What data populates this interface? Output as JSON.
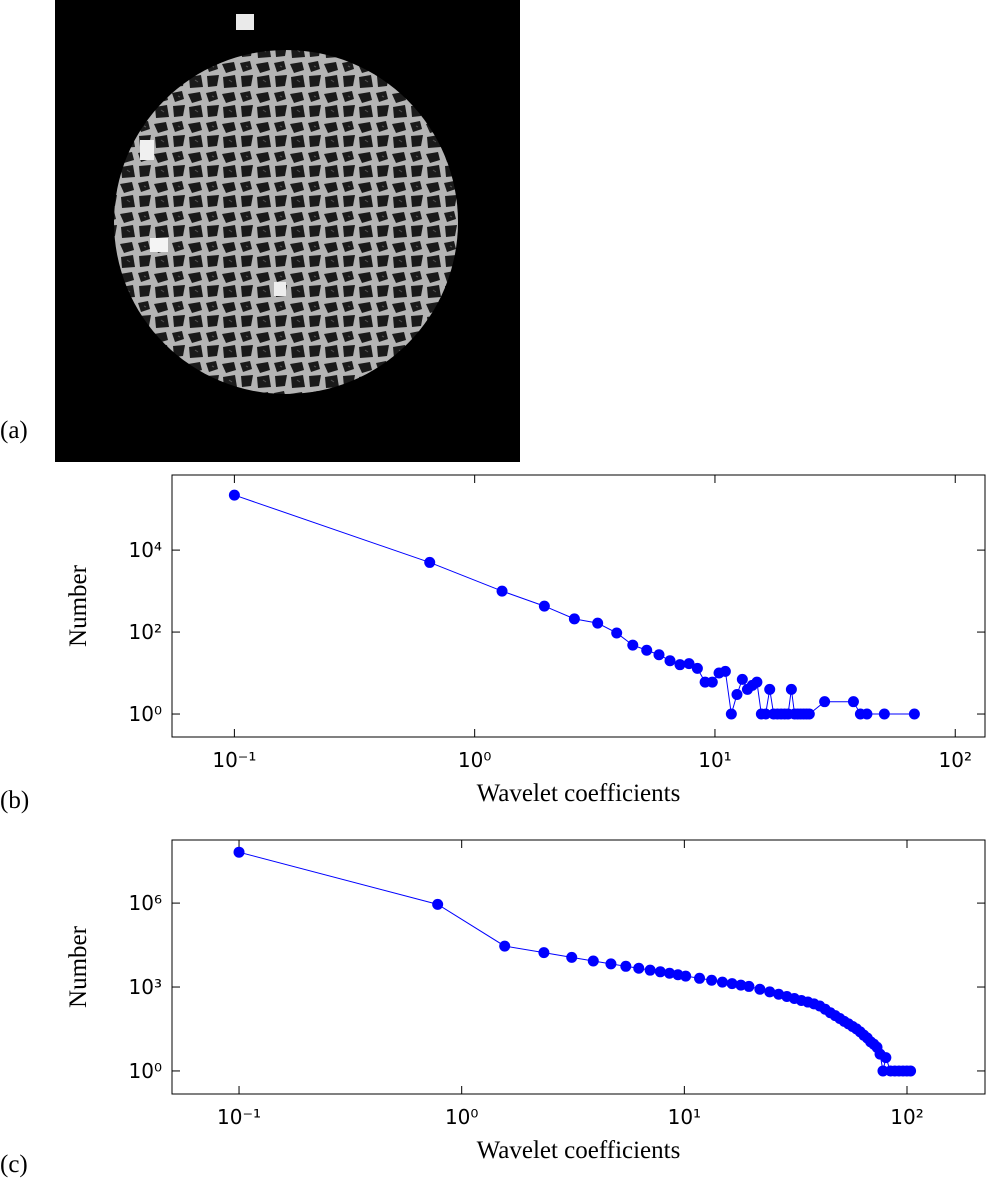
{
  "panel_labels": [
    "(a)",
    "(b)",
    "(c)"
  ],
  "chart_data": [
    {
      "type": "line",
      "xlabel": "Wavelet coefficients",
      "ylabel": "Number",
      "xscale": "log",
      "yscale": "log",
      "xlim": [
        0.055,
        133
      ],
      "ylim": [
        0.275,
        680000
      ],
      "xticks": [
        {
          "value": 0.1,
          "label": "10⁻¹"
        },
        {
          "value": 1,
          "label": "10⁰"
        },
        {
          "value": 10,
          "label": "10¹"
        },
        {
          "value": 100,
          "label": "10²"
        }
      ],
      "yticks": [
        {
          "value": 1,
          "label": "10⁰"
        },
        {
          "value": 100,
          "label": "10²"
        },
        {
          "value": 10000,
          "label": "10⁴"
        }
      ],
      "x": [
        0.1,
        0.65,
        1.3,
        1.95,
        2.6,
        3.25,
        3.9,
        4.55,
        5.2,
        5.85,
        6.5,
        7.15,
        7.8,
        8.45,
        9.1,
        9.75,
        10.4,
        11.05,
        11.7,
        12.35,
        13,
        13.65,
        14.3,
        14.95,
        15.6,
        16.25,
        16.9,
        17.55,
        18.2,
        18.85,
        19.5,
        20.15,
        20.8,
        21.45,
        22.1,
        22.75,
        23.4,
        24.05,
        24.7,
        28.6,
        37.7,
        40.3,
        42.9,
        50.7,
        67.6
      ],
      "series": [
        {
          "color": "#0000ff",
          "values": [
            220000,
            5000,
            1000,
            430,
            210,
            165,
            95,
            48,
            36,
            28,
            20,
            16,
            17,
            13,
            6,
            6,
            10,
            11,
            1,
            3,
            7,
            4,
            5,
            6,
            1,
            1,
            4,
            1,
            1,
            1,
            1,
            1,
            4,
            1,
            1,
            1,
            1,
            1,
            1,
            2,
            2,
            1,
            1,
            1,
            1
          ]
        }
      ]
    },
    {
      "type": "line",
      "xlabel": "Wavelet coefficients",
      "ylabel": "Number",
      "xscale": "log",
      "yscale": "log",
      "xlim": [
        0.05,
        224
      ],
      "ylim": [
        0.15,
        180000000
      ],
      "xticks": [
        {
          "value": 0.1,
          "label": "10⁻¹"
        },
        {
          "value": 1,
          "label": "10⁰"
        },
        {
          "value": 10,
          "label": "10¹"
        },
        {
          "value": 100,
          "label": "10²"
        }
      ],
      "yticks": [
        {
          "value": 1,
          "label": "10⁰"
        },
        {
          "value": 1000,
          "label": "10³"
        },
        {
          "value": 1000000,
          "label": "10⁶"
        }
      ],
      "x": [
        0.1,
        0.78,
        1.56,
        2.34,
        3.12,
        3.9,
        4.68,
        5.46,
        6.24,
        7.02,
        7.8,
        8.58,
        9.36,
        10.14,
        11.7,
        13.26,
        14.82,
        16.38,
        17.94,
        19.5,
        21.84,
        24.18,
        26.52,
        28.86,
        31.2,
        33.54,
        35.88,
        38.22,
        40.56,
        42.9,
        45.24,
        47.58,
        49.92,
        52.26,
        54.6,
        56.94,
        59.28,
        61.62,
        63.96,
        66.3,
        68.64,
        70.98,
        73.32,
        75.66,
        78,
        80.34,
        84.24,
        88.14,
        92.04,
        95.94,
        99.84,
        103.74
      ],
      "series": [
        {
          "color": "#0000ff",
          "values": [
            66000000,
            900000,
            29000,
            17000,
            11500,
            8500,
            6700,
            5500,
            4700,
            4000,
            3500,
            3100,
            2750,
            2450,
            2050,
            1740,
            1500,
            1320,
            1170,
            1050,
            830,
            670,
            550,
            460,
            390,
            330,
            290,
            250,
            210,
            160,
            120,
            95,
            75,
            59,
            48,
            39,
            32,
            25,
            19,
            15,
            11,
            9,
            7,
            4,
            1,
            3,
            1,
            1,
            1,
            1,
            1,
            1
          ]
        }
      ]
    }
  ]
}
